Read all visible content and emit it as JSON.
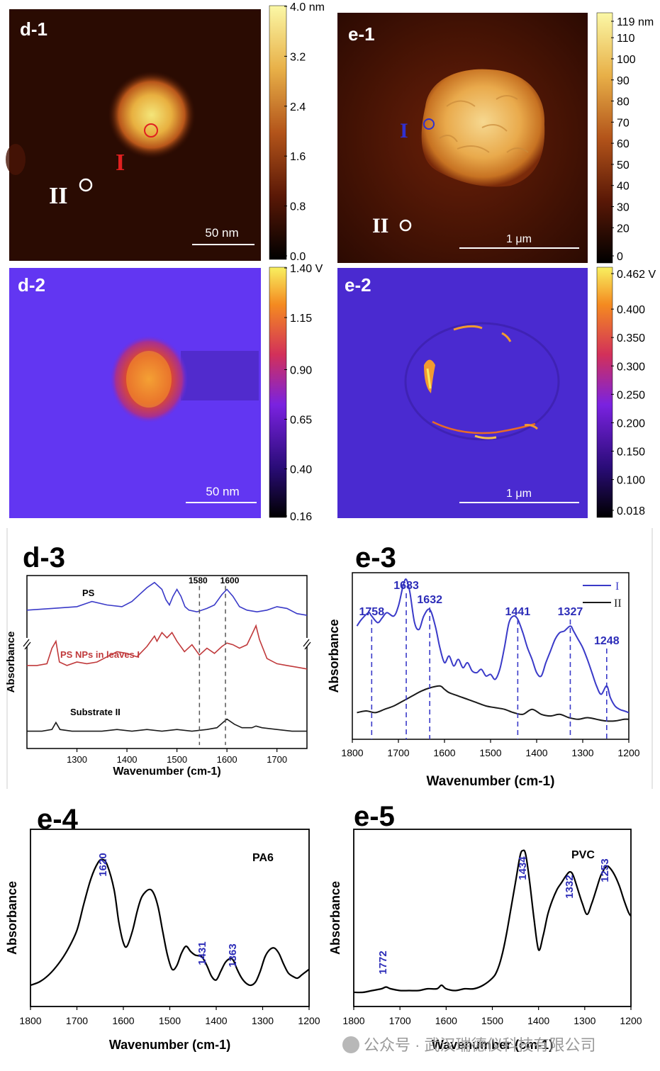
{
  "figure": {
    "panels": {
      "d1": {
        "label": "d-1",
        "scale_bar": "50 nm",
        "markers": [
          "I",
          "II"
        ]
      },
      "e1": {
        "label": "e-1",
        "scale_bar": "1 μm",
        "markers": [
          "I",
          "II"
        ]
      },
      "d2": {
        "label": "d-2",
        "scale_bar": "50 nm"
      },
      "e2": {
        "label": "e-2",
        "scale_bar": "1 μm"
      }
    },
    "colorbars": {
      "d1": [
        "4.0 nm",
        "3.2",
        "2.4",
        "1.6",
        "0.8",
        "0.0"
      ],
      "e1": [
        "119 nm",
        "110",
        "100",
        "90",
        "80",
        "70",
        "60",
        "50",
        "40",
        "30",
        "20",
        "0"
      ],
      "d2": [
        "1.40 V",
        "1.15",
        "0.90",
        "0.65",
        "0.40",
        "0.16"
      ],
      "e2": [
        "0.462 V",
        "0.400",
        "0.350",
        "0.300",
        "0.250",
        "0.200",
        "0.150",
        "0.100",
        "0.018"
      ]
    },
    "watermark": "公众号 · 武汉瑞德仪科技有限公司",
    "colors": {
      "blue": "#3a3ac8",
      "red": "#c0393b",
      "black": "#1a1a1a",
      "peak_label": "#2c2cb8"
    }
  },
  "chart_data": [
    {
      "id": "d-3",
      "type": "line",
      "title": "d-3",
      "xlabel": "Wavenumber (cm-1)",
      "ylabel": "Absorbance",
      "xlim": [
        1200,
        1760
      ],
      "x_ticks": [
        "1300",
        "1400",
        "1500",
        "1600",
        "1700"
      ],
      "ylim": [
        0,
        10
      ],
      "series": [
        {
          "name": "PS",
          "color": "#3a3ac8",
          "x": [
            1200,
            1250,
            1300,
            1330,
            1360,
            1390,
            1410,
            1425,
            1440,
            1455,
            1470,
            1478,
            1485,
            1492,
            1500,
            1508,
            1516,
            1524,
            1540,
            1560,
            1575,
            1590,
            1600,
            1612,
            1625,
            1640,
            1660,
            1680,
            1700,
            1720,
            1740,
            1760
          ],
          "y": [
            8.0,
            8.1,
            8.2,
            8.5,
            8.3,
            8.2,
            8.5,
            8.9,
            9.3,
            9.6,
            9.2,
            8.6,
            8.3,
            8.8,
            9.2,
            8.8,
            8.2,
            8.0,
            7.9,
            8.1,
            8.3,
            8.9,
            9.2,
            8.8,
            8.2,
            8.0,
            7.9,
            8.0,
            8.2,
            8.1,
            7.8,
            7.7
          ]
        },
        {
          "name": "PS NPs in leaves I",
          "color": "#c0393b",
          "x": [
            1200,
            1220,
            1240,
            1250,
            1258,
            1265,
            1280,
            1300,
            1320,
            1340,
            1360,
            1380,
            1400,
            1420,
            1440,
            1455,
            1460,
            1470,
            1480,
            1490,
            1500,
            1515,
            1530,
            1545,
            1560,
            1575,
            1590,
            1600,
            1612,
            1625,
            1640,
            1650,
            1658,
            1665,
            1680,
            1700,
            1720,
            1740,
            1760
          ],
          "y": [
            4.8,
            4.8,
            4.9,
            5.8,
            6.2,
            5.0,
            4.8,
            5.0,
            4.9,
            5.0,
            5.3,
            5.6,
            5.5,
            5.3,
            5.9,
            6.5,
            6.2,
            6.7,
            6.4,
            6.7,
            6.2,
            5.6,
            6.0,
            5.4,
            5.8,
            5.5,
            5.9,
            6.1,
            6.0,
            5.8,
            6.0,
            6.6,
            7.1,
            6.3,
            5.2,
            4.9,
            4.8,
            4.7,
            4.6
          ]
        },
        {
          "name": "Substrate II",
          "color": "#1a1a1a",
          "x": [
            1200,
            1230,
            1250,
            1258,
            1266,
            1290,
            1320,
            1350,
            1380,
            1410,
            1440,
            1470,
            1500,
            1530,
            1560,
            1580,
            1600,
            1615,
            1630,
            1650,
            1658,
            1670,
            1700,
            1730,
            1760
          ],
          "y": [
            1.0,
            1.0,
            1.1,
            1.5,
            1.1,
            1.0,
            1.0,
            1.0,
            1.1,
            1.0,
            1.1,
            1.0,
            1.1,
            1.0,
            1.1,
            1.2,
            1.7,
            1.4,
            1.2,
            1.2,
            1.3,
            1.2,
            1.1,
            1.0,
            1.0
          ]
        }
      ],
      "annotations": [
        {
          "text": "1580",
          "x": 1545
        },
        {
          "text": "1600",
          "x": 1597
        },
        {
          "text": "PS",
          "x": 1320
        },
        {
          "text": "PS NPs in leaves I",
          "x": 1345
        },
        {
          "text": "Substrate II",
          "x": 1345
        }
      ]
    },
    {
      "id": "e-3",
      "type": "line",
      "title": "e-3",
      "xlabel": "Wavenumber (cm-1)",
      "ylabel": "Absorbance",
      "xlim": [
        1800,
        1200
      ],
      "x_ticks": [
        "1800",
        "1700",
        "1600",
        "1500",
        "1400",
        "1300",
        "1200"
      ],
      "ylim": [
        0,
        10
      ],
      "legend": [
        "I",
        "II"
      ],
      "series": [
        {
          "name": "I",
          "color": "#3a3ac8",
          "x": [
            1790,
            1780,
            1765,
            1758,
            1745,
            1735,
            1725,
            1710,
            1700,
            1690,
            1683,
            1675,
            1665,
            1655,
            1645,
            1632,
            1620,
            1610,
            1600,
            1590,
            1580,
            1570,
            1560,
            1550,
            1540,
            1530,
            1520,
            1510,
            1500,
            1490,
            1480,
            1470,
            1460,
            1450,
            1441,
            1430,
            1420,
            1410,
            1400,
            1390,
            1380,
            1370,
            1360,
            1350,
            1340,
            1327,
            1320,
            1310,
            1300,
            1290,
            1280,
            1270,
            1260,
            1248,
            1240,
            1230,
            1220,
            1210,
            1200
          ],
          "y": [
            6.8,
            7.2,
            7.6,
            7.4,
            7.0,
            7.3,
            7.6,
            7.4,
            8.0,
            9.2,
            9.6,
            8.8,
            7.0,
            6.6,
            7.4,
            7.8,
            6.8,
            5.5,
            4.6,
            5.0,
            4.4,
            4.8,
            4.3,
            4.6,
            4.1,
            4.0,
            4.2,
            3.8,
            3.9,
            3.6,
            4.2,
            5.5,
            7.0,
            7.4,
            7.2,
            6.4,
            5.5,
            4.8,
            4.0,
            3.8,
            4.6,
            5.3,
            6.0,
            6.4,
            6.5,
            6.8,
            6.5,
            6.0,
            5.5,
            4.8,
            4.0,
            3.2,
            2.7,
            3.2,
            2.5,
            2.0,
            1.8,
            1.7,
            1.6
          ]
        },
        {
          "name": "II",
          "color": "#1a1a1a",
          "x": [
            1790,
            1770,
            1750,
            1730,
            1710,
            1690,
            1670,
            1650,
            1630,
            1610,
            1600,
            1590,
            1570,
            1550,
            1530,
            1510,
            1490,
            1470,
            1450,
            1430,
            1410,
            1390,
            1370,
            1350,
            1330,
            1310,
            1290,
            1270,
            1250,
            1230,
            1210,
            1200
          ],
          "y": [
            1.6,
            1.7,
            1.6,
            1.8,
            2.0,
            2.3,
            2.6,
            2.9,
            3.1,
            3.2,
            3.0,
            2.8,
            2.6,
            2.4,
            2.2,
            2.0,
            1.9,
            1.8,
            1.6,
            1.5,
            1.8,
            1.5,
            1.4,
            1.5,
            1.3,
            1.2,
            1.3,
            1.2,
            1.1,
            1.1,
            1.2,
            1.2
          ]
        }
      ],
      "peaks": [
        "1758",
        "1683",
        "1632",
        "1441",
        "1327",
        "1248"
      ],
      "peak_positions": [
        1758,
        1683,
        1632,
        1441,
        1327,
        1248
      ]
    },
    {
      "id": "e-4",
      "type": "line",
      "title": "e-4",
      "xlabel": "Wavenumber (cm-1)",
      "ylabel": "Absorbance",
      "xlim": [
        1800,
        1200
      ],
      "x_ticks": [
        "1800",
        "1700",
        "1600",
        "1500",
        "1400",
        "1300",
        "1200"
      ],
      "ylim": [
        0,
        10
      ],
      "annotation": "PA6",
      "peaks": [
        "1620",
        "1431",
        "1363"
      ],
      "series": [
        {
          "name": "PA6",
          "color": "#000000",
          "x": [
            1800,
            1780,
            1760,
            1740,
            1720,
            1700,
            1685,
            1670,
            1655,
            1645,
            1635,
            1620,
            1610,
            1600,
            1592,
            1580,
            1570,
            1560,
            1545,
            1535,
            1525,
            1515,
            1505,
            1495,
            1485,
            1475,
            1465,
            1455,
            1445,
            1431,
            1420,
            1410,
            1400,
            1390,
            1380,
            1370,
            1363,
            1355,
            1345,
            1335,
            1325,
            1315,
            1305,
            1295,
            1285,
            1275,
            1265,
            1255,
            1245,
            1235,
            1225,
            1215,
            1200
          ],
          "y": [
            1.2,
            1.4,
            1.8,
            2.4,
            3.2,
            4.3,
            5.8,
            7.2,
            8.1,
            8.3,
            8.0,
            6.6,
            4.8,
            3.6,
            3.4,
            4.3,
            5.4,
            6.2,
            6.6,
            6.4,
            5.6,
            4.2,
            2.9,
            2.1,
            2.3,
            3.0,
            3.4,
            3.1,
            2.9,
            2.8,
            2.3,
            1.7,
            1.5,
            2.0,
            2.5,
            2.7,
            2.6,
            2.1,
            1.6,
            1.3,
            1.2,
            1.4,
            2.0,
            2.8,
            3.2,
            3.3,
            3.0,
            2.4,
            1.9,
            1.7,
            1.6,
            1.8,
            2.1
          ]
        }
      ]
    },
    {
      "id": "e-5",
      "type": "line",
      "title": "e-5",
      "xlabel": "Wavenumber (cm-1)",
      "ylabel": "Absorbance",
      "xlim": [
        1800,
        1200
      ],
      "x_ticks": [
        "1800",
        "1700",
        "1600",
        "1500",
        "1400",
        "1300",
        "1200"
      ],
      "ylim": [
        0,
        10
      ],
      "annotation": "PVC",
      "peaks": [
        "1772",
        "1434",
        "1332",
        "1253"
      ],
      "series": [
        {
          "name": "PVC",
          "color": "#000000",
          "x": [
            1800,
            1780,
            1760,
            1740,
            1730,
            1720,
            1700,
            1680,
            1660,
            1640,
            1620,
            1610,
            1600,
            1580,
            1560,
            1540,
            1520,
            1500,
            1490,
            1480,
            1470,
            1460,
            1450,
            1440,
            1434,
            1428,
            1420,
            1410,
            1400,
            1390,
            1380,
            1370,
            1360,
            1350,
            1340,
            1332,
            1325,
            1315,
            1305,
            1295,
            1285,
            1275,
            1265,
            1253,
            1245,
            1235,
            1225,
            1215,
            1205,
            1200
          ],
          "y": [
            0.8,
            0.8,
            0.9,
            1.0,
            1.1,
            1.0,
            0.9,
            0.9,
            0.9,
            1.0,
            1.0,
            1.2,
            1.0,
            0.9,
            1.0,
            1.0,
            1.2,
            1.6,
            2.0,
            2.8,
            4.0,
            5.5,
            7.0,
            8.5,
            8.8,
            8.6,
            7.2,
            5.0,
            3.2,
            4.0,
            5.2,
            6.0,
            6.6,
            7.0,
            7.4,
            7.6,
            7.4,
            6.6,
            5.8,
            5.2,
            5.8,
            6.6,
            7.4,
            7.9,
            7.8,
            7.4,
            6.8,
            6.0,
            5.3,
            5.1
          ]
        }
      ]
    }
  ]
}
